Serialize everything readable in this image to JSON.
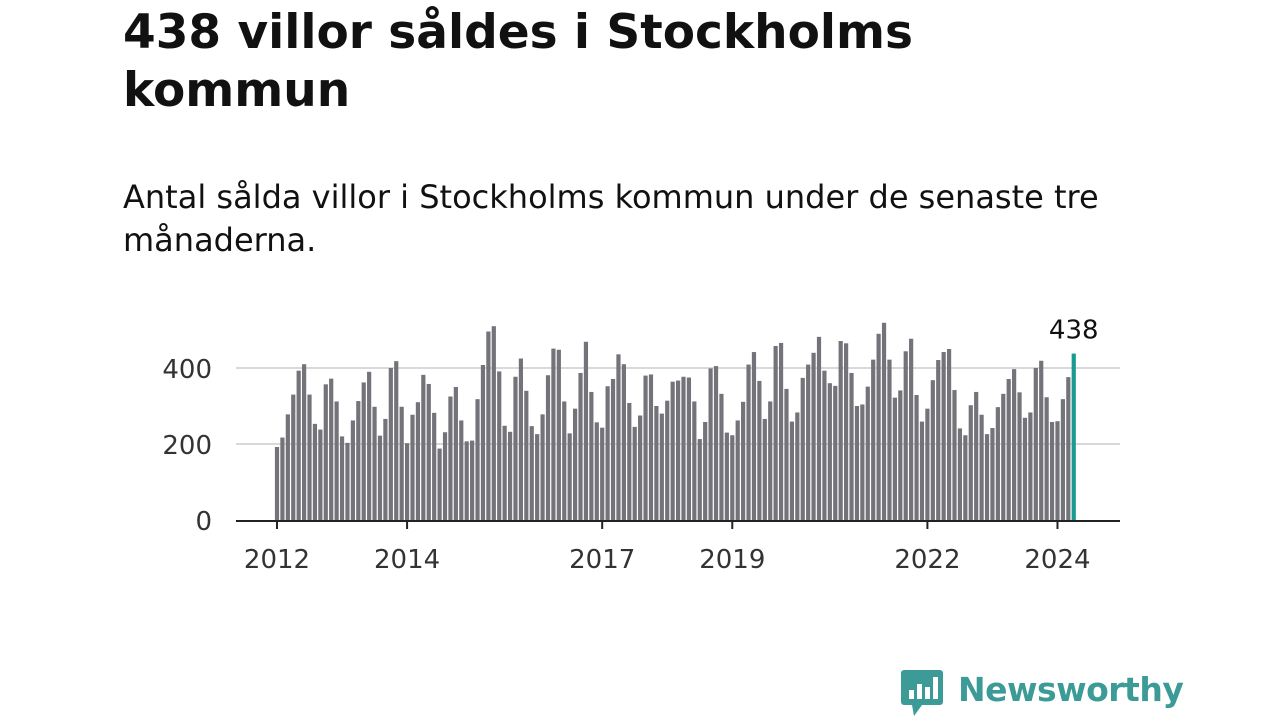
{
  "title": "438 villor såldes i Stockholms kommun",
  "subtitle": "Antal sålda villor i Stockholms kommun under de senaste tre månaderna.",
  "brand": {
    "name": "Newsworthy",
    "color": "#3d9b97"
  },
  "chart_data": {
    "type": "bar",
    "title": "",
    "xlabel": "",
    "ylabel": "",
    "ylim": [
      0,
      520
    ],
    "yticks": [
      0,
      200,
      400
    ],
    "grid": true,
    "bar_color": "#75737a",
    "highlight_color": "#1b9a91",
    "highlight_label": "438",
    "x_tick_labels": [
      {
        "label": "2012",
        "index": 0
      },
      {
        "label": "2014",
        "index": 24
      },
      {
        "label": "2017",
        "index": 60
      },
      {
        "label": "2019",
        "index": 84
      },
      {
        "label": "2022",
        "index": 120
      },
      {
        "label": "2024",
        "index": 144
      }
    ],
    "values": [
      192,
      217,
      278,
      330,
      393,
      410,
      330,
      253,
      238,
      357,
      372,
      312,
      220,
      203,
      262,
      313,
      362,
      390,
      298,
      222,
      266,
      400,
      418,
      298,
      202,
      277,
      310,
      382,
      358,
      282,
      188,
      231,
      325,
      350,
      262,
      207,
      209,
      318,
      408,
      496,
      510,
      391,
      248,
      232,
      377,
      425,
      340,
      247,
      226,
      278,
      381,
      451,
      448,
      312,
      228,
      293,
      387,
      469,
      337,
      257,
      243,
      352,
      371,
      436,
      410,
      308,
      245,
      275,
      380,
      383,
      300,
      280,
      314,
      364,
      367,
      377,
      375,
      312,
      213,
      258,
      399,
      405,
      332,
      230,
      223,
      262,
      311,
      409,
      442,
      366,
      266,
      312,
      458,
      466,
      345,
      259,
      283,
      374,
      409,
      440,
      482,
      393,
      360,
      353,
      471,
      465,
      387,
      300,
      304,
      351,
      422,
      490,
      519,
      422,
      322,
      341,
      444,
      477,
      329,
      259,
      293,
      368,
      421,
      442,
      450,
      342,
      241,
      223,
      302,
      337,
      277,
      226,
      242,
      297,
      332,
      371,
      397,
      336,
      269,
      283,
      400,
      419,
      323,
      258,
      260,
      318,
      376,
      438
    ]
  }
}
